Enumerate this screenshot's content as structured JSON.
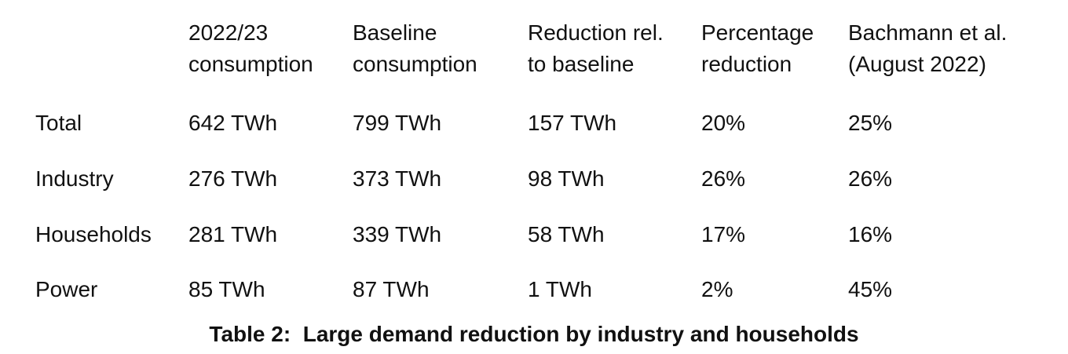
{
  "table": {
    "headers": [
      [
        "2022/23",
        "consumption"
      ],
      [
        "Baseline",
        "consumption"
      ],
      [
        "Reduction rel.",
        "to baseline"
      ],
      [
        "Percentage",
        "reduction"
      ],
      [
        "Bachmann et al.",
        "(August 2022)"
      ]
    ],
    "rows": [
      [
        "Total",
        "642 TWh",
        "799 TWh",
        "157 TWh",
        "20%",
        "25%"
      ],
      [
        "Industry",
        "276 TWh",
        "373 TWh",
        "98 TWh",
        "26%",
        "26%"
      ],
      [
        "Households",
        "281 TWh",
        "339 TWh",
        "58 TWh",
        "17%",
        "16%"
      ],
      [
        "Power",
        "85 TWh",
        "87 TWh",
        "1 TWh",
        "2%",
        "45%"
      ]
    ],
    "caption": "Table 2:  Large demand reduction by industry and households"
  }
}
